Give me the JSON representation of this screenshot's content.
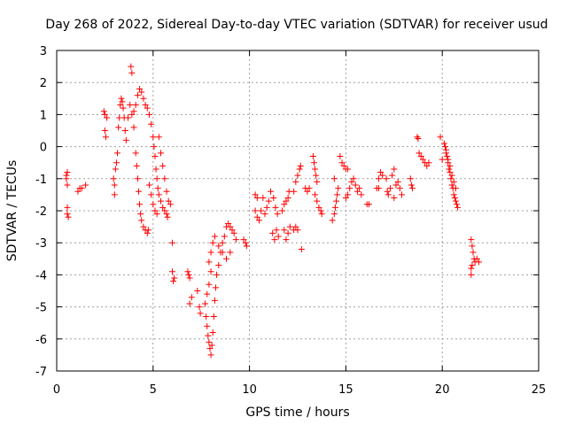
{
  "chart_data": {
    "type": "scatter",
    "title": "Day 268 of 2022, Sidereal Day-to-day VTEC variation (SDTVAR) for receiver usud",
    "xlabel": "GPS time / hours",
    "ylabel": "SDTVAR / TECUs",
    "xlim": [
      0,
      25
    ],
    "ylim": [
      -7,
      3
    ],
    "xticks": [
      0,
      5,
      10,
      15,
      20,
      25
    ],
    "yticks": [
      -7,
      -6,
      -5,
      -4,
      -3,
      -2,
      -1,
      0,
      1,
      2,
      3
    ],
    "grid": true,
    "marker": "+",
    "color": "#ff0000",
    "series": [
      {
        "name": "SDTVAR",
        "points": [
          [
            0.5,
            -0.9
          ],
          [
            0.5,
            -1.0
          ],
          [
            0.55,
            -0.8
          ],
          [
            0.55,
            -1.2
          ],
          [
            0.55,
            -1.9
          ],
          [
            0.55,
            -2.1
          ],
          [
            0.6,
            -2.2
          ],
          [
            1.1,
            -1.4
          ],
          [
            1.2,
            -1.3
          ],
          [
            1.3,
            -1.3
          ],
          [
            1.5,
            -1.2
          ],
          [
            2.45,
            1.1
          ],
          [
            2.5,
            1.0
          ],
          [
            2.5,
            0.5
          ],
          [
            2.55,
            0.3
          ],
          [
            2.6,
            0.9
          ],
          [
            2.95,
            -1.0
          ],
          [
            3.0,
            -1.2
          ],
          [
            3.0,
            -1.5
          ],
          [
            3.05,
            -0.7
          ],
          [
            3.1,
            -0.5
          ],
          [
            3.15,
            -0.2
          ],
          [
            3.2,
            0.6
          ],
          [
            3.25,
            0.9
          ],
          [
            3.3,
            1.3
          ],
          [
            3.35,
            1.5
          ],
          [
            3.4,
            1.4
          ],
          [
            3.45,
            1.2
          ],
          [
            3.5,
            0.9
          ],
          [
            3.55,
            0.5
          ],
          [
            3.6,
            0.2
          ],
          [
            3.7,
            0.9
          ],
          [
            3.8,
            1.3
          ],
          [
            3.85,
            2.5
          ],
          [
            3.9,
            2.3
          ],
          [
            3.9,
            1.0
          ],
          [
            4.0,
            0.6
          ],
          [
            4.1,
            -0.2
          ],
          [
            4.15,
            -0.6
          ],
          [
            4.2,
            -1.0
          ],
          [
            4.25,
            -1.4
          ],
          [
            4.3,
            -1.8
          ],
          [
            4.35,
            -2.1
          ],
          [
            4.4,
            -2.3
          ],
          [
            4.5,
            -2.5
          ],
          [
            4.6,
            -2.6
          ],
          [
            4.7,
            -2.7
          ],
          [
            4.75,
            -2.6
          ],
          [
            4.0,
            1.1
          ],
          [
            4.1,
            1.3
          ],
          [
            4.2,
            1.6
          ],
          [
            4.3,
            1.8
          ],
          [
            4.4,
            1.7
          ],
          [
            4.5,
            1.5
          ],
          [
            4.6,
            1.3
          ],
          [
            4.7,
            1.2
          ],
          [
            4.8,
            1.0
          ],
          [
            4.9,
            0.7
          ],
          [
            5.0,
            0.3
          ],
          [
            5.05,
            0.0
          ],
          [
            5.1,
            -0.3
          ],
          [
            5.15,
            -0.7
          ],
          [
            5.2,
            -1.0
          ],
          [
            5.25,
            -1.3
          ],
          [
            5.3,
            -1.5
          ],
          [
            5.4,
            -1.7
          ],
          [
            5.5,
            -1.9
          ],
          [
            5.6,
            -2.0
          ],
          [
            5.7,
            -2.1
          ],
          [
            5.75,
            -2.2
          ],
          [
            4.8,
            -1.2
          ],
          [
            4.9,
            -1.5
          ],
          [
            5.0,
            -1.8
          ],
          [
            5.1,
            -2.0
          ],
          [
            5.2,
            -2.1
          ],
          [
            5.3,
            0.3
          ],
          [
            5.4,
            -0.2
          ],
          [
            5.5,
            -0.6
          ],
          [
            5.6,
            -1.0
          ],
          [
            5.7,
            -1.4
          ],
          [
            5.8,
            -1.7
          ],
          [
            5.9,
            -1.8
          ],
          [
            6.0,
            -3.0
          ],
          [
            6.0,
            -3.9
          ],
          [
            6.1,
            -4.1
          ],
          [
            6.05,
            -4.2
          ],
          [
            6.8,
            -3.9
          ],
          [
            6.85,
            -4.0
          ],
          [
            6.9,
            -4.1
          ],
          [
            7.0,
            -4.7
          ],
          [
            6.9,
            -4.9
          ],
          [
            7.3,
            -4.5
          ],
          [
            7.4,
            -5.0
          ],
          [
            7.45,
            -5.2
          ],
          [
            7.7,
            -4.9
          ],
          [
            7.75,
            -5.3
          ],
          [
            7.8,
            -5.6
          ],
          [
            7.85,
            -5.9
          ],
          [
            7.9,
            -6.1
          ],
          [
            7.95,
            -6.3
          ],
          [
            8.0,
            -6.5
          ],
          [
            8.05,
            -6.2
          ],
          [
            8.1,
            -5.8
          ],
          [
            8.15,
            -5.3
          ],
          [
            8.2,
            -4.8
          ],
          [
            8.25,
            -4.4
          ],
          [
            8.3,
            -4.0
          ],
          [
            8.4,
            -3.7
          ],
          [
            8.5,
            -3.3
          ],
          [
            8.6,
            -3.0
          ],
          [
            8.7,
            -2.8
          ],
          [
            8.8,
            -2.5
          ],
          [
            8.9,
            -2.4
          ],
          [
            9.0,
            -2.5
          ],
          [
            9.1,
            -2.6
          ],
          [
            9.2,
            -2.7
          ],
          [
            9.3,
            -2.9
          ],
          [
            7.9,
            -3.6
          ],
          [
            8.0,
            -3.3
          ],
          [
            8.1,
            -3.0
          ],
          [
            8.2,
            -2.8
          ],
          [
            8.4,
            -3.1
          ],
          [
            8.6,
            -3.3
          ],
          [
            8.8,
            -3.5
          ],
          [
            9.0,
            -3.3
          ],
          [
            7.8,
            -4.6
          ],
          [
            7.9,
            -4.3
          ],
          [
            8.0,
            -3.9
          ],
          [
            9.7,
            -2.9
          ],
          [
            9.8,
            -3.0
          ],
          [
            9.85,
            -3.1
          ],
          [
            10.3,
            -1.5
          ],
          [
            10.4,
            -1.6
          ],
          [
            10.3,
            -2.0
          ],
          [
            10.4,
            -2.2
          ],
          [
            10.5,
            -2.3
          ],
          [
            10.6,
            -2.0
          ],
          [
            10.7,
            -1.6
          ],
          [
            10.8,
            -2.1
          ],
          [
            10.9,
            -1.9
          ],
          [
            11.0,
            -1.7
          ],
          [
            11.1,
            -1.4
          ],
          [
            11.2,
            -2.7
          ],
          [
            11.3,
            -2.9
          ],
          [
            11.4,
            -2.6
          ],
          [
            11.5,
            -2.8
          ],
          [
            11.25,
            -1.6
          ],
          [
            11.35,
            -1.9
          ],
          [
            11.45,
            -2.1
          ],
          [
            11.7,
            -2.0
          ],
          [
            11.8,
            -1.8
          ],
          [
            11.9,
            -1.7
          ],
          [
            12.0,
            -1.6
          ],
          [
            12.05,
            -1.4
          ],
          [
            11.8,
            -2.6
          ],
          [
            11.9,
            -2.9
          ],
          [
            12.0,
            -2.7
          ],
          [
            12.1,
            -2.5
          ],
          [
            12.3,
            -1.4
          ],
          [
            12.4,
            -1.1
          ],
          [
            12.5,
            -0.9
          ],
          [
            12.6,
            -0.7
          ],
          [
            12.65,
            -0.6
          ],
          [
            12.3,
            -2.6
          ],
          [
            12.4,
            -2.5
          ],
          [
            12.5,
            -2.6
          ],
          [
            12.7,
            -3.2
          ],
          [
            12.9,
            -1.3
          ],
          [
            13.0,
            -1.4
          ],
          [
            13.1,
            -1.3
          ],
          [
            13.3,
            -0.3
          ],
          [
            13.35,
            -0.5
          ],
          [
            13.4,
            -0.7
          ],
          [
            13.45,
            -0.9
          ],
          [
            13.5,
            -1.1
          ],
          [
            13.4,
            -1.5
          ],
          [
            13.5,
            -1.7
          ],
          [
            13.6,
            -1.9
          ],
          [
            13.7,
            -2.0
          ],
          [
            13.75,
            -2.1
          ],
          [
            14.3,
            -2.3
          ],
          [
            14.4,
            -2.1
          ],
          [
            14.45,
            -1.9
          ],
          [
            14.5,
            -1.7
          ],
          [
            14.55,
            -1.5
          ],
          [
            14.6,
            -1.3
          ],
          [
            14.4,
            -1.0
          ],
          [
            14.7,
            -0.3
          ],
          [
            14.8,
            -0.5
          ],
          [
            14.9,
            -0.6
          ],
          [
            15.0,
            -0.7
          ],
          [
            15.1,
            -0.7
          ],
          [
            15.0,
            -1.6
          ],
          [
            15.1,
            -1.5
          ],
          [
            15.2,
            -1.3
          ],
          [
            15.3,
            -1.1
          ],
          [
            15.4,
            -1.0
          ],
          [
            15.5,
            -1.2
          ],
          [
            15.6,
            -1.4
          ],
          [
            15.7,
            -1.3
          ],
          [
            15.8,
            -1.5
          ],
          [
            16.1,
            -1.8
          ],
          [
            16.2,
            -1.8
          ],
          [
            16.6,
            -1.3
          ],
          [
            16.7,
            -1.0
          ],
          [
            16.8,
            -0.8
          ],
          [
            16.9,
            -0.9
          ],
          [
            16.7,
            -1.3
          ],
          [
            17.1,
            -1.0
          ],
          [
            17.15,
            -1.4
          ],
          [
            17.2,
            -1.5
          ],
          [
            17.3,
            -1.3
          ],
          [
            17.4,
            -0.9
          ],
          [
            17.5,
            -0.7
          ],
          [
            17.6,
            -1.2
          ],
          [
            17.7,
            -1.1
          ],
          [
            17.8,
            -1.3
          ],
          [
            17.9,
            -1.5
          ],
          [
            17.5,
            -1.6
          ],
          [
            18.35,
            -1.0
          ],
          [
            18.4,
            -1.2
          ],
          [
            18.45,
            -1.3
          ],
          [
            18.7,
            0.3
          ],
          [
            18.75,
            0.25
          ],
          [
            18.8,
            -0.2
          ],
          [
            18.9,
            -0.3
          ],
          [
            19.0,
            -0.4
          ],
          [
            19.1,
            -0.5
          ],
          [
            19.2,
            -0.6
          ],
          [
            19.3,
            -0.5
          ],
          [
            19.9,
            0.3
          ],
          [
            20.0,
            -0.4
          ],
          [
            20.1,
            0.1
          ],
          [
            20.15,
            0.0
          ],
          [
            20.2,
            -0.1
          ],
          [
            20.25,
            -0.3
          ],
          [
            20.3,
            -0.5
          ],
          [
            20.35,
            -0.7
          ],
          [
            20.4,
            -0.8
          ],
          [
            20.45,
            -1.0
          ],
          [
            20.5,
            -1.2
          ],
          [
            20.55,
            -1.3
          ],
          [
            20.6,
            -1.5
          ],
          [
            20.65,
            -1.6
          ],
          [
            20.7,
            -1.7
          ],
          [
            20.75,
            -1.8
          ],
          [
            20.8,
            -1.9
          ],
          [
            20.2,
            -0.2
          ],
          [
            20.3,
            -0.4
          ],
          [
            20.4,
            -0.6
          ],
          [
            20.5,
            -0.9
          ],
          [
            20.6,
            -1.1
          ],
          [
            20.7,
            -1.3
          ],
          [
            21.5,
            -2.9
          ],
          [
            21.55,
            -3.1
          ],
          [
            21.6,
            -3.3
          ],
          [
            21.65,
            -3.5
          ],
          [
            21.7,
            -3.6
          ],
          [
            21.8,
            -3.5
          ],
          [
            21.9,
            -3.6
          ],
          [
            21.5,
            -3.8
          ],
          [
            21.5,
            -4.0
          ],
          [
            21.55,
            -3.7
          ]
        ]
      }
    ]
  }
}
